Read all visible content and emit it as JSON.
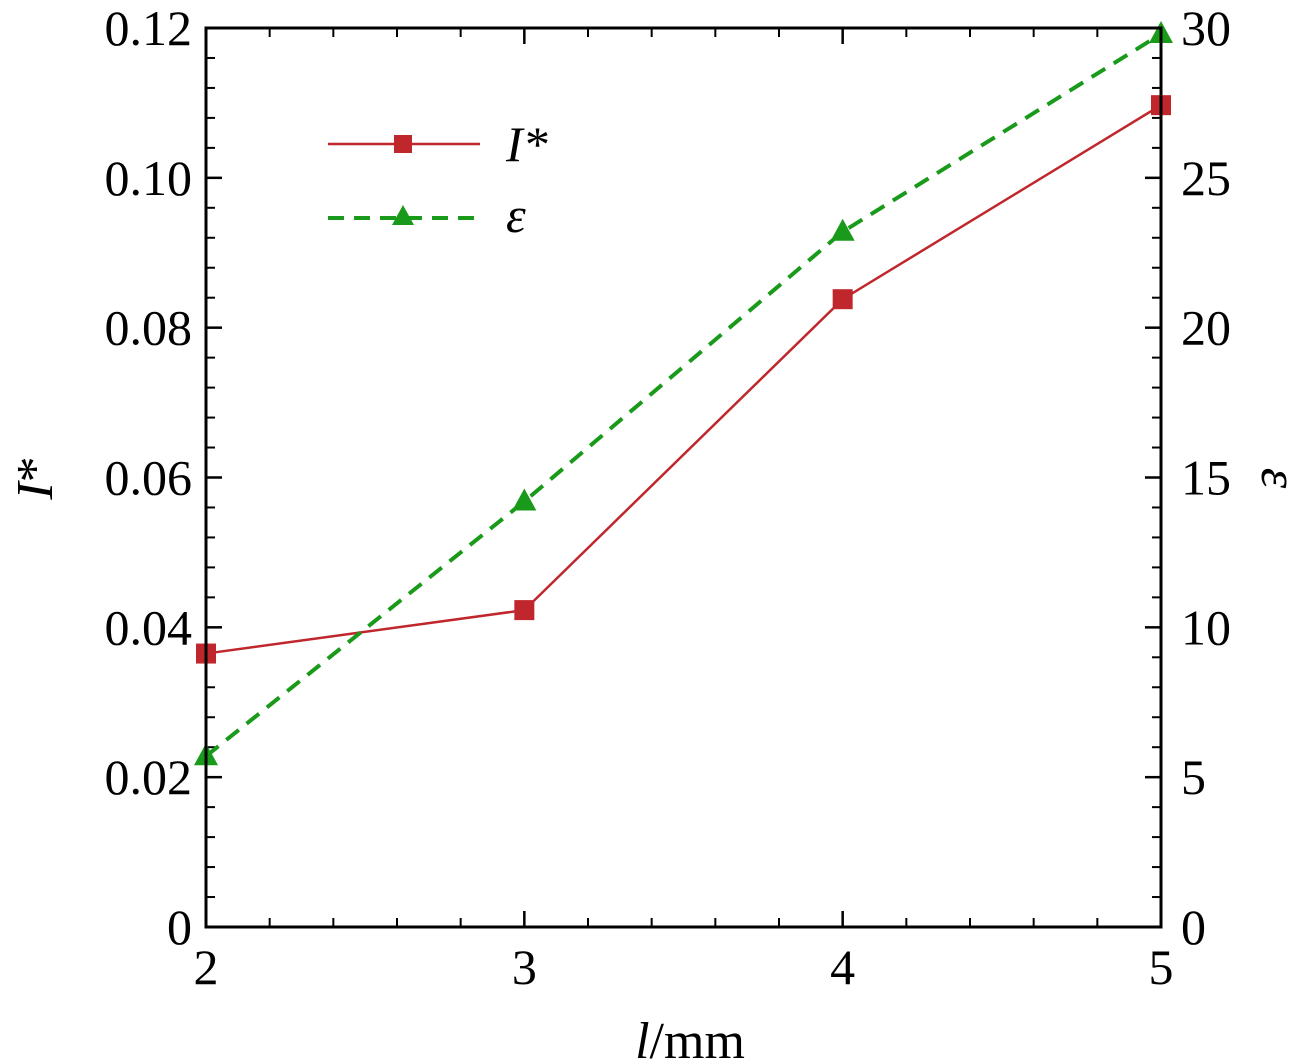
{
  "chart_data": {
    "type": "line",
    "title": "",
    "xlabel": {
      "italic": "l",
      "rest": "/mm"
    },
    "ylabel_left": {
      "italic": "I",
      "rest": "*"
    },
    "ylabel_right": "ε",
    "x": [
      2,
      3,
      4,
      5
    ],
    "xlim": [
      2,
      5
    ],
    "ylim_left": [
      0,
      0.12
    ],
    "ylim_right": [
      0,
      30
    ],
    "x_ticks": [
      "2",
      "3",
      "4",
      "5"
    ],
    "y_left_ticks": [
      "0",
      "0.02",
      "0.04",
      "0.06",
      "0.08",
      "0.10",
      "0.12"
    ],
    "y_right_ticks": [
      "0",
      "5",
      "10",
      "15",
      "20",
      "25",
      "30"
    ],
    "grid": false,
    "legend_position": "top-left",
    "series": [
      {
        "name": "I*",
        "axis": "left",
        "values": [
          0.0365,
          0.0423,
          0.0838,
          0.1097
        ],
        "color": "#c0272d",
        "style": "solid",
        "marker": "square"
      },
      {
        "name": "ε",
        "axis": "right",
        "values": [
          5.7,
          14.2,
          23.2,
          29.8
        ],
        "color": "#1a9a1a",
        "style": "dashed",
        "marker": "triangle"
      }
    ]
  }
}
